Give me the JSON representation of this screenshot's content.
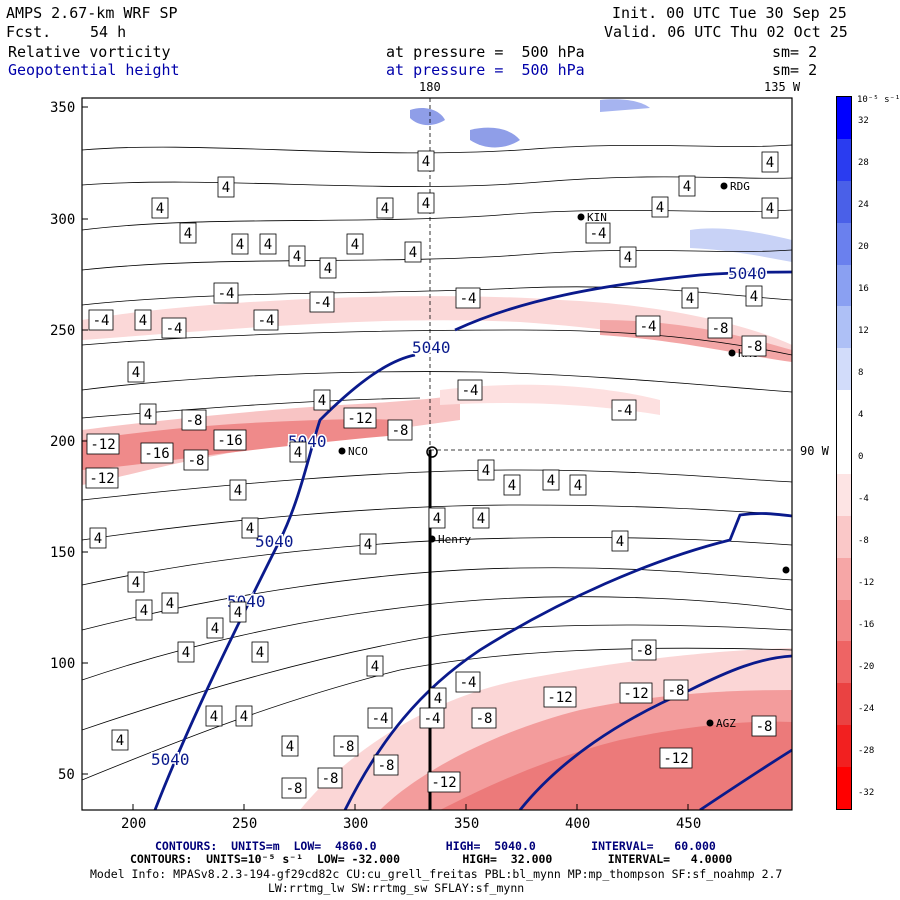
{
  "header": {
    "model": "AMPS 2.67-km WRF SP",
    "forecast_label": "Fcst.",
    "forecast_hours": "54 h",
    "init": "Init. 00 UTC Tue 30 Sep 25",
    "valid": "Valid. 06 UTC Thu 02 Oct 25",
    "field1_name": "Relative vorticity",
    "field1_level": "at pressure =  500 hPa",
    "field1_sm": "sm= 2",
    "field2_name": "Geopotential height",
    "field2_level": "at pressure =  500 hPa",
    "field2_sm": "sm= 2"
  },
  "map": {
    "lon_label_top_1": "180",
    "lon_label_top_2": "135 W",
    "lon_label_right": "90 W",
    "x_ticks": [
      "200",
      "250",
      "300",
      "350",
      "400",
      "450"
    ],
    "y_ticks": [
      "350",
      "300",
      "250",
      "200",
      "150",
      "100",
      "50"
    ],
    "stations": [
      {
        "id": "RDG",
        "label": "RDG"
      },
      {
        "id": "KIN",
        "label": "KIN"
      },
      {
        "id": "HRC",
        "label": "HRC"
      },
      {
        "id": "NCO",
        "label": "NCO"
      },
      {
        "id": "Henry",
        "label": "Henry"
      },
      {
        "id": "AGZ",
        "label": "AGZ"
      }
    ],
    "height_labels": [
      "5040",
      "5040",
      "5040",
      "5040",
      "5040",
      "5040"
    ],
    "vort_pos_label": "4",
    "vort_neg_labels": [
      "-4",
      "-8",
      "-12",
      "-16"
    ]
  },
  "colorbar": {
    "unit_label": "10⁻⁵ s⁻¹",
    "ticks": [
      "32",
      "28",
      "24",
      "20",
      "16",
      "12",
      "8",
      "4",
      "0",
      "-4",
      "-8",
      "-12",
      "-16",
      "-20",
      "-24",
      "-28",
      "-32"
    ],
    "colors": [
      "#0000ff",
      "#2a3cf0",
      "#4a60e8",
      "#6a80ee",
      "#8aa0f2",
      "#aec0f6",
      "#d2dcfa",
      "#ffffff",
      "#ffffff",
      "#fde4e4",
      "#fac8c8",
      "#f6a6a6",
      "#f28686",
      "#ee6464",
      "#ea4242",
      "#f22020",
      "#ff0000"
    ]
  },
  "footer": {
    "line1": "CONTOURS:  UNITS=m  LOW=  4860.0          HIGH=  5040.0        INTERVAL=   60.000",
    "line2": "CONTOURS:  UNITS=10⁻⁵ s⁻¹  LOW= -32.000         HIGH=  32.000        INTERVAL=   4.0000",
    "line3": "Model Info: MPASv8.2.3-194-gf29cd82c CU:cu_grell_freitas PBL:bl_mynn MP:mp_thompson SF:sf_noahmp 2.7",
    "line4": "LW:rrtmg_lw SW:rrtmg_sw SFLAY:sf_mynn"
  },
  "colors": {
    "height": "#0a1a8c",
    "neg_fill": "#f3a0a0",
    "pos_fill": "#9aa8ee"
  }
}
